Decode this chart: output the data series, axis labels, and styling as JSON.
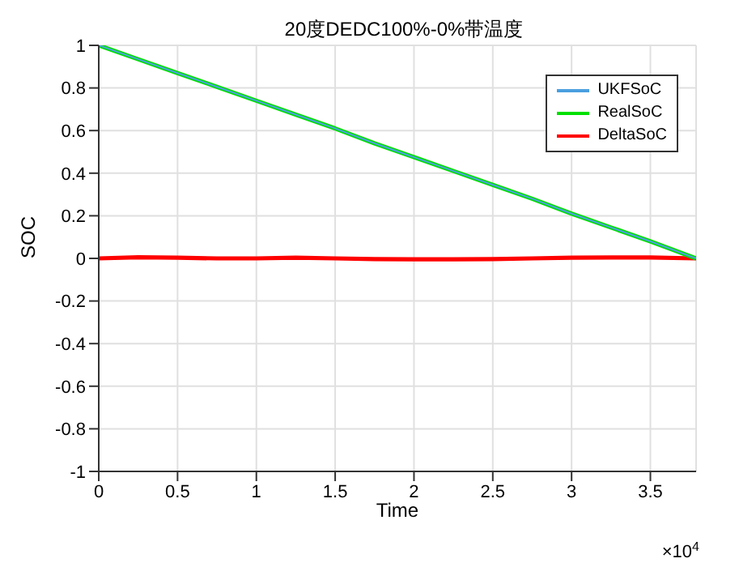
{
  "chart_data": {
    "type": "line",
    "title": "20度DEDC100%-0%带温度",
    "xlabel": "Time",
    "ylabel": "SOC",
    "annotations": [
      "×10$^{4}$"
    ],
    "x": [
      0,
      0.25,
      0.5,
      0.75,
      1,
      1.25,
      1.5,
      1.75,
      2,
      2.25,
      2.5,
      2.75,
      3,
      3.25,
      3.5,
      3.79
    ],
    "series": [
      {
        "name": "UKFSoC",
        "color": "#4a9fe0",
        "values": [
          1,
          0.935,
          0.87,
          0.805,
          0.74,
          0.675,
          0.61,
          0.54,
          0.475,
          0.41,
          0.345,
          0.28,
          0.21,
          0.145,
          0.08,
          0
        ]
      },
      {
        "name": "RealSoC",
        "color": "#00e000",
        "values": [
          1,
          0.935,
          0.87,
          0.805,
          0.74,
          0.675,
          0.61,
          0.54,
          0.475,
          0.41,
          0.345,
          0.28,
          0.21,
          0.145,
          0.08,
          0
        ]
      },
      {
        "name": "DeltaSoC",
        "color": "#ff0000",
        "values": [
          0,
          0.005,
          0.003,
          0,
          0,
          0.003,
          0,
          -0.003,
          -0.004,
          -0.004,
          -0.003,
          0,
          0.003,
          0.004,
          0.004,
          0
        ]
      }
    ],
    "xlim": [
      0,
      3.79
    ],
    "xticks": [
      0,
      0.5,
      1,
      1.5,
      2,
      2.5,
      3,
      3.5
    ],
    "ylim": [
      -1,
      1
    ],
    "yticks": [
      -1,
      -0.8,
      -0.6,
      -0.4,
      -0.2,
      0,
      0.2,
      0.4,
      0.6,
      0.8,
      1
    ],
    "grid": true,
    "legend": "top right",
    "marker": "none",
    "line_style": "solid"
  }
}
